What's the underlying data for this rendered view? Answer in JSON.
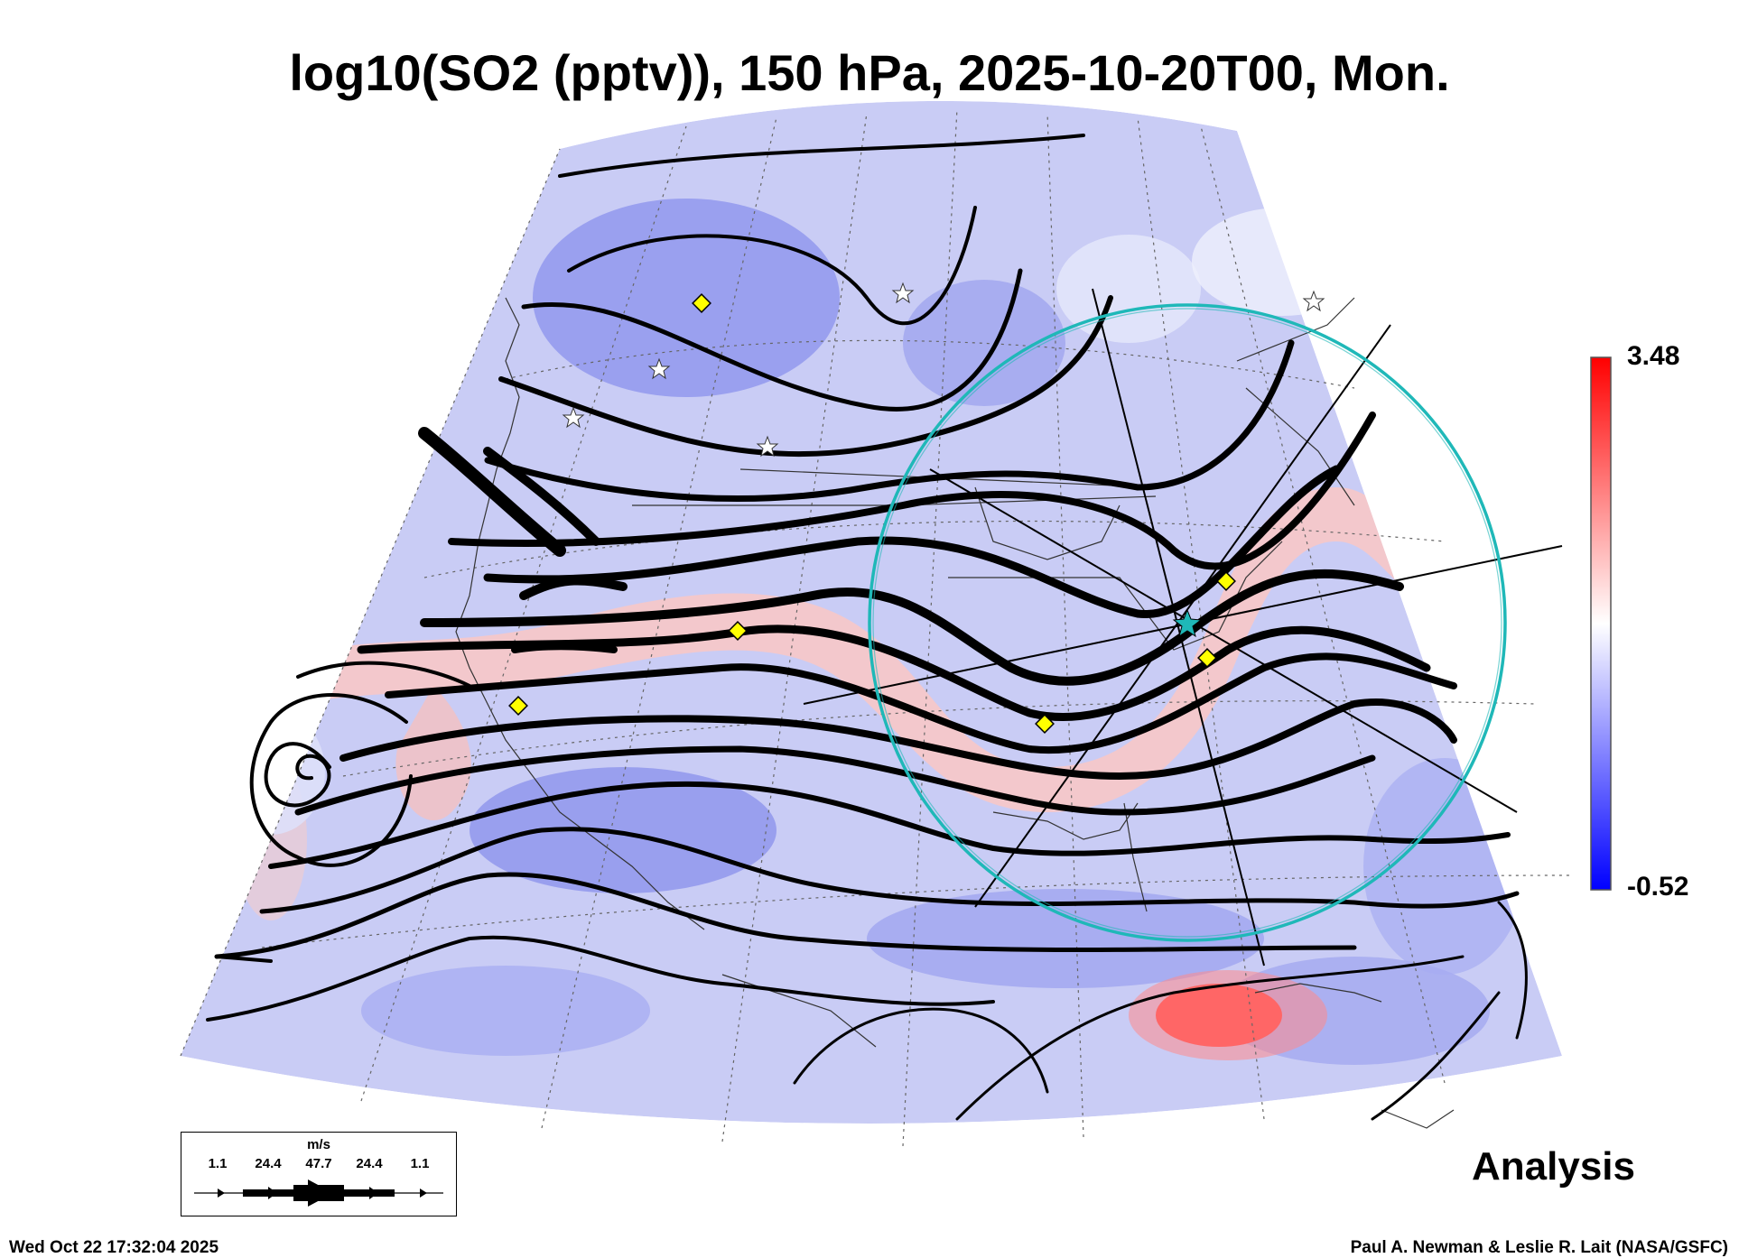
{
  "title": "log10(SO2 (pptv)), 150 hPa, 2025-10-20T00, Mon.",
  "colorbar": {
    "max_label": "3.48",
    "min_label": "-0.52",
    "colors": [
      "#0000ff",
      "#ffffff",
      "#ff0000"
    ]
  },
  "wind_key": {
    "unit": "m/s",
    "values": [
      "1.1",
      "24.4",
      "47.7",
      "24.4",
      "1.1"
    ]
  },
  "panel_label": "Analysis",
  "timestamp": "Wed Oct 22 17:32:04 2025",
  "credit": "Paul A. Newman & Leslie R. Lait (NASA/GSFC)",
  "markers": {
    "diamond_color": "#ffff00",
    "ring_color": "#1fb8b8",
    "center_star_color": "#1fb8b8"
  }
}
